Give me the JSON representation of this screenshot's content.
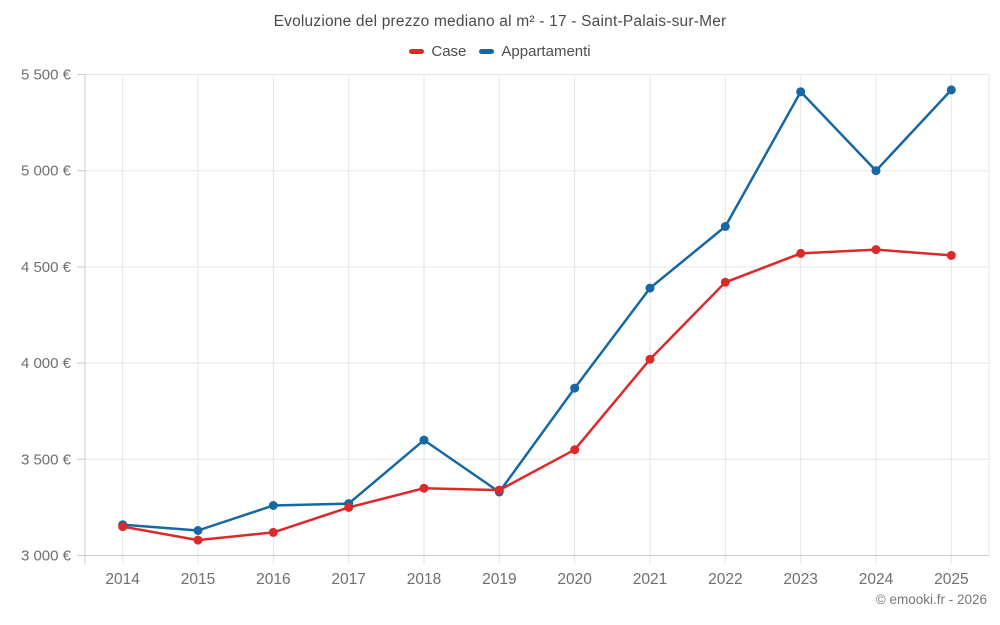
{
  "header": {
    "title": "Evoluzione del prezzo mediano al m² - 17 - Saint-Palais-sur-Mer"
  },
  "legend": {
    "items": [
      {
        "label": "Case",
        "color": "#dc2a2a"
      },
      {
        "label": "Appartamenti",
        "color": "#1568a4"
      }
    ]
  },
  "footer": {
    "copyright": "© emooki.fr - 2026"
  },
  "chart_data": {
    "type": "line",
    "title": "Evoluzione del prezzo mediano al m² - 17 - Saint-Palais-sur-Mer",
    "categories": [
      "2014",
      "2015",
      "2016",
      "2017",
      "2018",
      "2019",
      "2020",
      "2021",
      "2022",
      "2023",
      "2024",
      "2025"
    ],
    "series": [
      {
        "name": "Case",
        "color": "#dc2a2a",
        "values": [
          3150,
          3080,
          3120,
          3250,
          3350,
          3340,
          3550,
          4020,
          4420,
          4570,
          4590,
          4560
        ]
      },
      {
        "name": "Appartamenti",
        "color": "#1568a4",
        "values": [
          3160,
          3130,
          3260,
          3270,
          3600,
          3330,
          3870,
          4390,
          4710,
          5410,
          5000,
          5420
        ]
      }
    ],
    "xlabel": "",
    "ylabel": "",
    "ylim": [
      3000,
      5500
    ],
    "yticks": [
      3000,
      3500,
      4000,
      4500,
      5000,
      5500
    ],
    "ytick_labels": [
      "3 000 €",
      "3 500 €",
      "4 000 €",
      "4 500 €",
      "5 000 €",
      "5 500 €"
    ],
    "grid": true,
    "legend_position": "top",
    "point_marker": "circle"
  },
  "colors": {
    "background": "#ffffff",
    "grid": "#e6e6e6",
    "axis": "#cccccc",
    "tick_text": "#6f6f6f",
    "title_text": "#4a4a4a"
  }
}
